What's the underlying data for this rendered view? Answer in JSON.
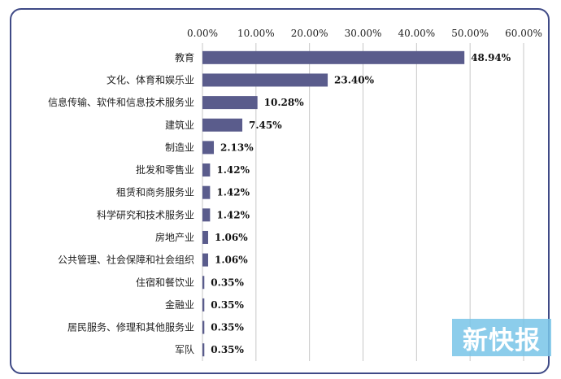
{
  "watermark": "新快报",
  "colors": {
    "bar": "#5a5c8c",
    "frame": "#3f4a86",
    "grid": "#c7c7c7"
  },
  "chart_data": {
    "type": "bar",
    "orientation": "horizontal",
    "x_tick_labels": [
      "0.00%",
      "10.00%",
      "20.00%",
      "30.00%",
      "40.00%",
      "50.00%",
      "60.00%"
    ],
    "xlim": [
      0,
      60
    ],
    "x_axis_position": "top",
    "grid": true,
    "categories": [
      "教育",
      "文化、体育和娱乐业",
      "信息传输、软件和信息技术服务业",
      "建筑业",
      "制造业",
      "批发和零售业",
      "租赁和商务服务业",
      "科学研究和技术服务业",
      "房地产业",
      "公共管理、社会保障和社会组织",
      "住宿和餐饮业",
      "金融业",
      "居民服务、修理和其他服务业",
      "军队"
    ],
    "values": [
      48.94,
      23.4,
      10.28,
      7.45,
      2.13,
      1.42,
      1.42,
      1.42,
      1.06,
      1.06,
      0.35,
      0.35,
      0.35,
      0.35
    ],
    "value_labels": [
      "48.94%",
      "23.40%",
      "10.28%",
      "7.45%",
      "2.13%",
      "1.42%",
      "1.42%",
      "1.42%",
      "1.06%",
      "1.06%",
      "0.35%",
      "0.35%",
      "0.35%",
      "0.35%"
    ]
  }
}
